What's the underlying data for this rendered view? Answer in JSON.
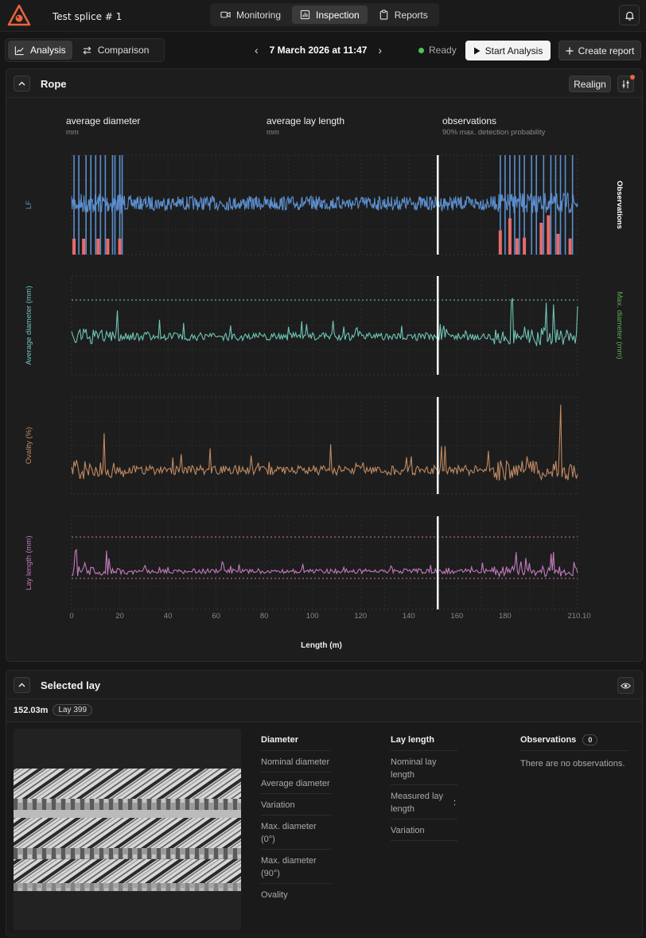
{
  "app": {
    "title": "Test splice # 1"
  },
  "nav": {
    "tabs": [
      {
        "label": "Monitoring",
        "icon": "video-icon"
      },
      {
        "label": "Inspection",
        "icon": "chart-icon",
        "active": true
      },
      {
        "label": "Reports",
        "icon": "clipboard-icon"
      }
    ]
  },
  "toolbar": {
    "view_tabs": [
      {
        "label": "Analysis",
        "active": true
      },
      {
        "label": "Comparison"
      }
    ],
    "date": "7 March 2026 at 11:47",
    "status": "Ready",
    "start_label": "Start Analysis",
    "report_label": "Create report"
  },
  "rope_panel": {
    "title": "Rope",
    "realign_label": "Realign",
    "col_headers": [
      {
        "title": "average diameter",
        "unit": "mm"
      },
      {
        "title": "average lay length",
        "unit": "mm"
      },
      {
        "title": "observations",
        "unit": "90% max. detection probability"
      }
    ]
  },
  "chart_data": {
    "type": "line",
    "xlabel": "Length (m)",
    "xlim": [
      0,
      210.1
    ],
    "x_ticks": [
      "0",
      "20",
      "40",
      "60",
      "80",
      "100",
      "120",
      "140",
      "160",
      "180",
      "210.10"
    ],
    "cursor_x": 152.03,
    "series": [
      {
        "name": "LF",
        "right_label": "Observations",
        "color": "#5b8fcf",
        "kind": "signal",
        "spike_regions": [
          [
            1,
            22
          ],
          [
            177,
            210
          ]
        ]
      },
      {
        "name": "Average diameter (mm)",
        "right_label": "Max. diameter (mm)",
        "color": "#6fc5b7",
        "right_color": "#5daa55",
        "kind": "line"
      },
      {
        "name": "Ovality (%)",
        "color": "#c08a62",
        "kind": "line"
      },
      {
        "name": "Lay length (mm)",
        "color": "#c27bbd",
        "kind": "line"
      }
    ],
    "observation_markers": [
      1,
      5,
      11,
      15,
      20,
      178,
      182,
      185,
      188,
      195,
      198,
      202,
      207
    ]
  },
  "selected_lay": {
    "title": "Selected lay",
    "length": "152.03m",
    "lay_badge": "Lay 399",
    "diameter": {
      "header": "Diameter",
      "rows": [
        "Nominal diameter",
        "Average diameter",
        "Variation",
        "Max. diameter (0°)",
        "Max. diameter (90°)",
        "Ovality"
      ]
    },
    "lay_length": {
      "header": "Lay length",
      "rows": [
        "Nominal lay length",
        "Measured lay length",
        "Variation"
      ],
      "measured_value": ":"
    },
    "observations": {
      "header": "Observations",
      "count": "0",
      "empty_text": "There are no observations."
    }
  },
  "colors": {
    "accent": "#e8643c",
    "status_ready": "#4cc35b",
    "notification": "#e8643c"
  }
}
